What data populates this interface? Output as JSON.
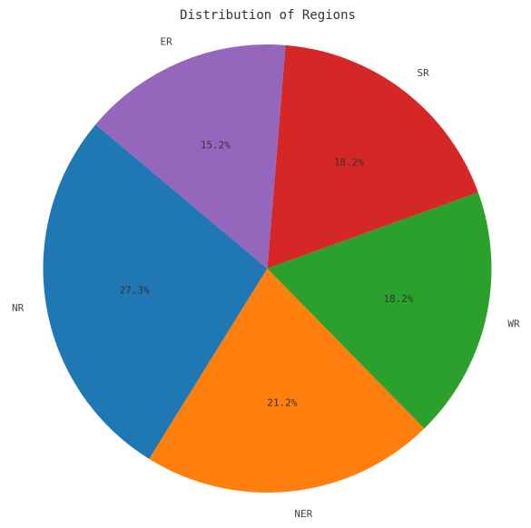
{
  "chart_data": {
    "type": "pie",
    "title": "Distribution of Regions",
    "labels": [
      "NR",
      "NER",
      "WR",
      "SR",
      "ER"
    ],
    "values": [
      27.3,
      21.2,
      18.2,
      18.2,
      15.2
    ],
    "percent_labels": [
      "27.3%",
      "21.2%",
      "18.2%",
      "18.2%",
      "15.2%"
    ],
    "colors": [
      "#1f77b4",
      "#ff7f0e",
      "#2ca02c",
      "#d62728",
      "#9467bd"
    ],
    "start_angle_deg": 140,
    "direction": "counterclockwise"
  }
}
